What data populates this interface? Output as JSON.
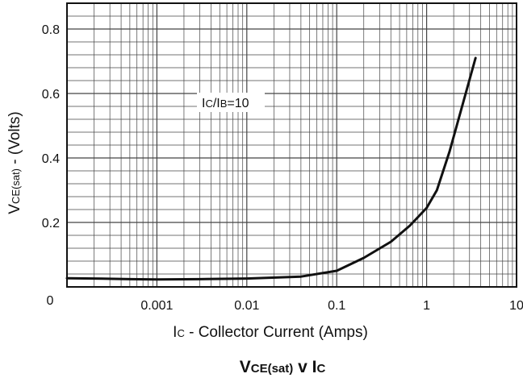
{
  "chart_data": {
    "type": "line",
    "title": "VCE(sat) v IC",
    "title_parts": {
      "main": "V",
      "sub1": "CE(sat)",
      "mid": " v I",
      "sub2": "C"
    },
    "xlabel": "IC - Collector Current (Amps)",
    "xlabel_parts": {
      "main": "I",
      "sub": "C",
      "rest": " - Collector Current (Amps)"
    },
    "ylabel": "VCE(sat) - (Volts)",
    "ylabel_parts": {
      "main": "V",
      "sub": "CE(sat)",
      "rest": " - (Volts)"
    },
    "x_scale": "log",
    "xlim": [
      0.0001,
      10
    ],
    "ylim": [
      0,
      0.88
    ],
    "grid": true,
    "x_ticks": [
      {
        "value": 0.001,
        "label": "0.001"
      },
      {
        "value": 0.01,
        "label": "0.01"
      },
      {
        "value": 0.1,
        "label": "0.1"
      },
      {
        "value": 1,
        "label": "1"
      },
      {
        "value": 10,
        "label": "10"
      }
    ],
    "y_ticks": [
      {
        "value": 0.2,
        "label": "0.2"
      },
      {
        "value": 0.4,
        "label": "0.4"
      },
      {
        "value": 0.6,
        "label": "0.6"
      },
      {
        "value": 0.8,
        "label": "0.8"
      }
    ],
    "origin_label": "0",
    "annotation": {
      "text": "IC/IB=10",
      "parts": [
        "I",
        "C",
        "/I",
        "B",
        "=10"
      ],
      "x": 0.0072,
      "y": 0.615
    },
    "series": [
      {
        "color": "#111111",
        "x": [
          0.0001,
          0.0002,
          0.0005,
          0.001,
          0.003,
          0.01,
          0.04,
          0.1,
          0.2,
          0.4,
          0.65,
          1.0,
          1.3,
          1.8,
          3.5
        ],
        "y": [
          0.027,
          0.026,
          0.024,
          0.023,
          0.024,
          0.026,
          0.032,
          0.05,
          0.09,
          0.14,
          0.19,
          0.245,
          0.3,
          0.42,
          0.71
        ]
      }
    ]
  }
}
